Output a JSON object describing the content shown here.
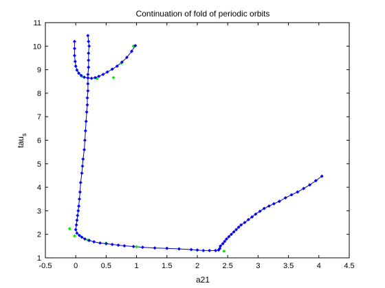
{
  "chart_data": {
    "type": "line",
    "title": "Continuation of fold of periodic orbits",
    "xlabel": "a21",
    "ylabel": {
      "main": "tau",
      "subscript": "s"
    },
    "xlim": [
      -0.5,
      4.5
    ],
    "ylim": [
      1,
      11
    ],
    "xticks": [
      "-0.5",
      "0",
      "0.5",
      "1",
      "1.5",
      "2",
      "2.5",
      "3",
      "3.5",
      "4",
      "4.5"
    ],
    "yticks": [
      "1",
      "2",
      "3",
      "4",
      "5",
      "6",
      "7",
      "8",
      "9",
      "10",
      "11"
    ],
    "grid": false,
    "colors": {
      "line": "#0000b4",
      "marker": "#0000ff",
      "alt_marker": "#00ee00"
    },
    "series": [
      {
        "points": [
          [
            0.2,
            10.45
          ],
          [
            0.21,
            10.2
          ],
          [
            0.22,
            10.0
          ],
          [
            0.21,
            9.7
          ],
          [
            0.21,
            9.4
          ],
          [
            0.21,
            9.1
          ],
          [
            0.2,
            8.8
          ],
          [
            0.2,
            8.4
          ],
          [
            0.2,
            8.1
          ],
          [
            0.19,
            7.8
          ],
          [
            0.19,
            7.5
          ],
          [
            0.18,
            7.2
          ],
          [
            0.17,
            6.8
          ],
          [
            0.16,
            6.4
          ],
          [
            0.15,
            6.0
          ],
          [
            0.14,
            5.6
          ],
          [
            0.12,
            5.2
          ],
          [
            0.11,
            4.9
          ],
          [
            0.1,
            4.6
          ],
          [
            0.08,
            4.2
          ],
          [
            0.07,
            3.8
          ],
          [
            0.06,
            3.5
          ],
          [
            0.05,
            3.2
          ],
          [
            0.04,
            3.0
          ],
          [
            0.03,
            2.8
          ],
          [
            0.02,
            2.6
          ],
          [
            0.01,
            2.4
          ],
          [
            0.0,
            2.2
          ],
          [
            0.02,
            2.05
          ],
          [
            0.06,
            1.95
          ],
          [
            0.1,
            1.88
          ],
          [
            0.15,
            1.8
          ],
          [
            0.22,
            1.74
          ],
          [
            0.3,
            1.68
          ],
          [
            0.4,
            1.63
          ],
          [
            0.5,
            1.6
          ],
          [
            0.6,
            1.57
          ],
          [
            0.7,
            1.54
          ],
          [
            0.8,
            1.51
          ],
          [
            0.95,
            1.48
          ],
          [
            1.1,
            1.45
          ],
          [
            1.3,
            1.42
          ],
          [
            1.5,
            1.4
          ],
          [
            1.7,
            1.38
          ],
          [
            1.9,
            1.35
          ],
          [
            2.0,
            1.33
          ],
          [
            2.1,
            1.31
          ],
          [
            2.2,
            1.31
          ],
          [
            2.3,
            1.31
          ],
          [
            2.35,
            1.33
          ],
          [
            2.37,
            1.4
          ],
          [
            2.38,
            1.5
          ],
          [
            2.42,
            1.6
          ],
          [
            2.45,
            1.7
          ],
          [
            2.48,
            1.8
          ],
          [
            2.52,
            1.9
          ],
          [
            2.56,
            2.0
          ],
          [
            2.6,
            2.1
          ],
          [
            2.64,
            2.2
          ],
          [
            2.68,
            2.3
          ],
          [
            2.72,
            2.4
          ],
          [
            2.78,
            2.5
          ],
          [
            2.84,
            2.62
          ],
          [
            2.9,
            2.74
          ],
          [
            2.96,
            2.86
          ],
          [
            3.03,
            2.98
          ],
          [
            3.1,
            3.1
          ],
          [
            3.18,
            3.2
          ],
          [
            3.26,
            3.3
          ],
          [
            3.35,
            3.4
          ],
          [
            3.45,
            3.55
          ],
          [
            3.55,
            3.68
          ],
          [
            3.65,
            3.8
          ],
          [
            3.75,
            3.95
          ],
          [
            3.85,
            4.1
          ],
          [
            3.95,
            4.28
          ],
          [
            4.05,
            4.47
          ]
        ]
      },
      {
        "points": [
          [
            -0.02,
            10.2
          ],
          [
            -0.02,
            9.9
          ],
          [
            -0.02,
            9.6
          ],
          [
            -0.01,
            9.35
          ],
          [
            0.0,
            9.15
          ],
          [
            0.02,
            8.98
          ],
          [
            0.05,
            8.85
          ],
          [
            0.09,
            8.75
          ],
          [
            0.14,
            8.68
          ],
          [
            0.2,
            8.65
          ],
          [
            0.26,
            8.63
          ],
          [
            0.32,
            8.66
          ],
          [
            0.38,
            8.72
          ],
          [
            0.45,
            8.8
          ],
          [
            0.52,
            8.9
          ],
          [
            0.6,
            9.02
          ],
          [
            0.68,
            9.15
          ],
          [
            0.76,
            9.32
          ],
          [
            0.84,
            9.52
          ],
          [
            0.92,
            9.78
          ],
          [
            0.98,
            10.02
          ]
        ]
      }
    ],
    "alt_markers": [
      [
        -0.1,
        2.24
      ],
      [
        -0.02,
        1.93
      ],
      [
        0.2,
        1.75
      ],
      [
        0.5,
        1.62
      ],
      [
        1.0,
        1.47
      ],
      [
        1.5,
        1.41
      ],
      [
        2.0,
        1.33
      ],
      [
        2.44,
        1.28
      ],
      [
        0.62,
        8.66
      ],
      [
        0.95,
        10.0
      ],
      [
        0.75,
        9.28
      ],
      [
        0.1,
        8.72
      ],
      [
        0.35,
        8.62
      ]
    ]
  }
}
